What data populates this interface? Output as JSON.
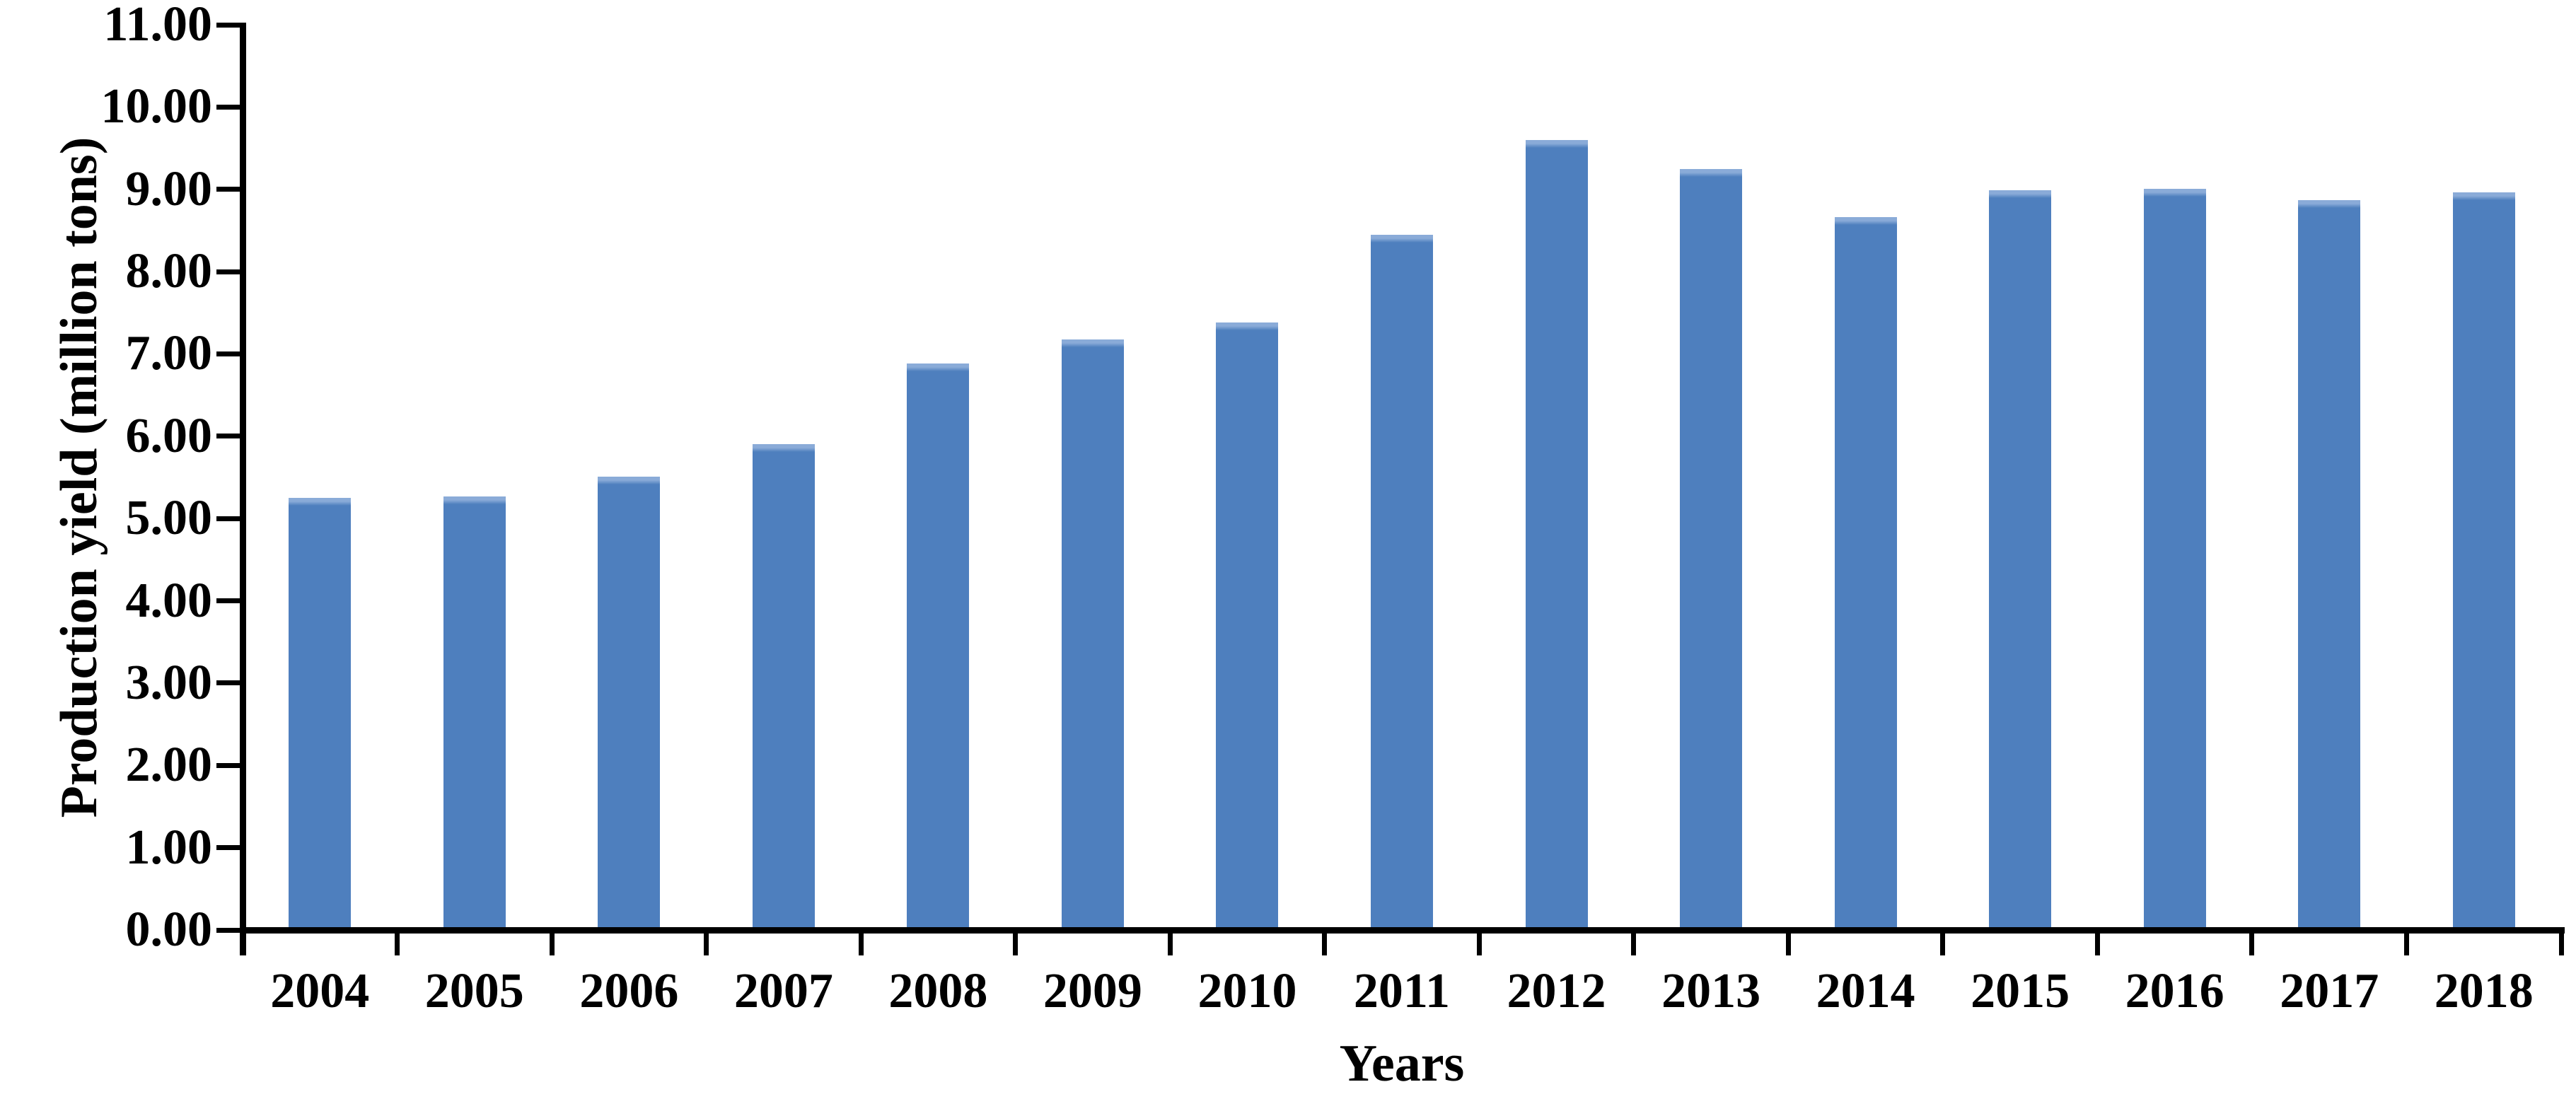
{
  "chart_data": {
    "type": "bar",
    "title": "",
    "xlabel": "Years",
    "ylabel": "Production yield (million tons)",
    "categories": [
      "2004",
      "2005",
      "2006",
      "2007",
      "2008",
      "2009",
      "2010",
      "2011",
      "2012",
      "2013",
      "2014",
      "2015",
      "2016",
      "2017",
      "2018"
    ],
    "values": [
      5.25,
      5.27,
      5.51,
      5.9,
      6.88,
      7.18,
      7.38,
      8.45,
      9.6,
      9.25,
      8.66,
      8.99,
      9.01,
      8.87,
      8.96
    ],
    "ylim": [
      0,
      11
    ],
    "ytick_step": 1,
    "ytick_labels": [
      "0.00",
      "1.00",
      "2.00",
      "3.00",
      "4.00",
      "5.00",
      "6.00",
      "7.00",
      "8.00",
      "9.00",
      "10.00",
      "11.00"
    ],
    "grid": false,
    "legend": false,
    "colors": {
      "bar_fill": "#4e7fbe",
      "bar_top_highlight": "#8aabd8",
      "axis": "#000000",
      "text": "#000000"
    }
  }
}
